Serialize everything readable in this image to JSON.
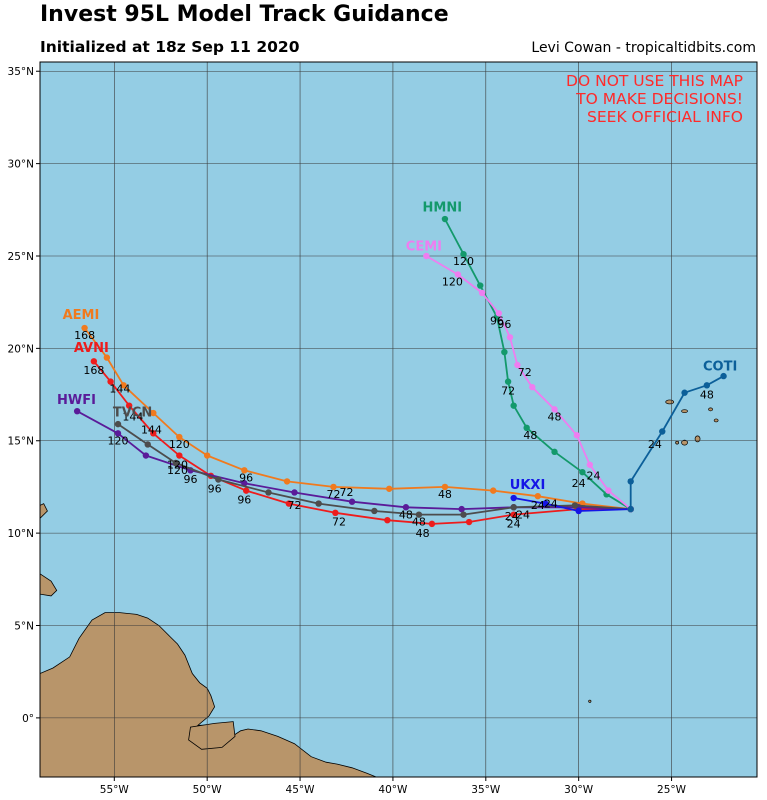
{
  "header": {
    "title": "Invest 95L Model Track Guidance",
    "subtitle": "Initialized at 18z Sep 11 2020",
    "credit": "Levi Cowan - tropicaltidbits.com"
  },
  "warning": [
    "DO NOT USE THIS MAP",
    "TO MAKE DECISIONS!",
    "SEEK OFFICIAL INFO"
  ],
  "map": {
    "lon_range": [
      -59,
      -20.4
    ],
    "lat_range": [
      -3.2,
      35.5
    ],
    "x_ticks": [
      {
        "lon": -55,
        "label": "55°W"
      },
      {
        "lon": -50,
        "label": "50°W"
      },
      {
        "lon": -45,
        "label": "45°W"
      },
      {
        "lon": -40,
        "label": "40°W"
      },
      {
        "lon": -35,
        "label": "35°W"
      },
      {
        "lon": -30,
        "label": "30°W"
      },
      {
        "lon": -25,
        "label": "25°W"
      }
    ],
    "y_ticks": [
      {
        "lat": 0,
        "label": "0°"
      },
      {
        "lat": 5,
        "label": "5°N"
      },
      {
        "lat": 10,
        "label": "10°N"
      },
      {
        "lat": 15,
        "label": "15°N"
      },
      {
        "lat": 20,
        "label": "20°N"
      },
      {
        "lat": 25,
        "label": "25°N"
      },
      {
        "lat": 30,
        "label": "30°N"
      },
      {
        "lat": 35,
        "label": "35°N"
      }
    ],
    "ocean_color": "#94cde4",
    "land_color": "#b8956a",
    "land": [
      [
        [
          -59,
          2.4
        ],
        [
          -58.3,
          2.7
        ],
        [
          -57.4,
          3.3
        ],
        [
          -56.9,
          4.3
        ],
        [
          -56.2,
          5.3
        ],
        [
          -55.5,
          5.7
        ],
        [
          -54.7,
          5.7
        ],
        [
          -53.8,
          5.6
        ],
        [
          -53.2,
          5.4
        ],
        [
          -52.6,
          5.0
        ],
        [
          -52.0,
          4.4
        ],
        [
          -51.6,
          4.0
        ],
        [
          -51.2,
          3.4
        ],
        [
          -50.8,
          2.4
        ],
        [
          -50.4,
          1.9
        ],
        [
          -50.0,
          1.6
        ],
        [
          -49.8,
          1.2
        ],
        [
          -49.6,
          0.6
        ],
        [
          -49.9,
          0.1
        ],
        [
          -50.5,
          -0.4
        ],
        [
          -49.2,
          -0.4
        ],
        [
          -48.5,
          -0.9
        ],
        [
          -48.2,
          -0.7
        ],
        [
          -47.8,
          -0.6
        ],
        [
          -47.1,
          -0.7
        ],
        [
          -46.2,
          -1.0
        ],
        [
          -45.3,
          -1.4
        ],
        [
          -44.4,
          -2.1
        ],
        [
          -43.6,
          -2.4
        ],
        [
          -43.0,
          -2.5
        ],
        [
          -42.2,
          -2.7
        ],
        [
          -41.4,
          -3.0
        ],
        [
          -40.9,
          -3.2
        ],
        [
          -59,
          -3.2
        ]
      ],
      [
        [
          -59,
          7.8
        ],
        [
          -58.4,
          7.4
        ],
        [
          -58.1,
          6.9
        ],
        [
          -58.4,
          6.6
        ],
        [
          -59,
          6.7
        ]
      ],
      [
        [
          -48.6,
          -0.2
        ],
        [
          -49.6,
          -0.3
        ],
        [
          -50.9,
          -0.5
        ],
        [
          -51.0,
          -1.2
        ],
        [
          -50.3,
          -1.7
        ],
        [
          -49.2,
          -1.6
        ],
        [
          -48.5,
          -1.0
        ]
      ],
      [
        [
          -59,
          10.8
        ],
        [
          -58.6,
          11.2
        ],
        [
          -58.8,
          11.6
        ],
        [
          -59,
          11.5
        ]
      ]
    ],
    "islands": [
      {
        "lon": -25.1,
        "lat": 17.1,
        "rx": 4,
        "ry": 2
      },
      {
        "lon": -24.3,
        "lat": 16.6,
        "rx": 3,
        "ry": 1.5
      },
      {
        "lon": -22.9,
        "lat": 16.7,
        "rx": 2,
        "ry": 1.5
      },
      {
        "lon": -22.6,
        "lat": 16.1,
        "rx": 2,
        "ry": 1.5
      },
      {
        "lon": -23.6,
        "lat": 15.1,
        "rx": 2.5,
        "ry": 3
      },
      {
        "lon": -24.3,
        "lat": 14.9,
        "rx": 3,
        "ry": 2.5
      },
      {
        "lon": -24.7,
        "lat": 14.9,
        "rx": 1.5,
        "ry": 1.5
      },
      {
        "lon": -29.4,
        "lat": 0.9,
        "rx": 1.2,
        "ry": 1.2
      }
    ]
  },
  "chart_data": {
    "type": "map-tracks",
    "origin": [
      -27.2,
      11.3
    ],
    "models": [
      {
        "name": "AEMI",
        "color": "#f07a1e",
        "name_at": [
          -56.6,
          21.6
        ],
        "label_dx": -22,
        "points": [
          [
            -27.2,
            11.3
          ],
          [
            -29.8,
            11.6
          ],
          [
            -32.2,
            12.0
          ],
          [
            -34.6,
            12.3
          ],
          [
            -37.2,
            12.5
          ],
          [
            -40.2,
            12.4
          ],
          [
            -43.2,
            12.5
          ],
          [
            -45.7,
            12.8
          ],
          [
            -48.0,
            13.4
          ],
          [
            -50.0,
            14.2
          ],
          [
            -51.5,
            15.2
          ],
          [
            -52.9,
            16.5
          ],
          [
            -54.5,
            18.0
          ],
          [
            -55.4,
            19.5
          ],
          [
            -56.6,
            21.1
          ]
        ],
        "hour_labels": [
          {
            "text": "168",
            "lon": -56.6,
            "lat": 20.5
          },
          {
            "text": "144",
            "lon": -54.7,
            "lat": 17.6
          },
          {
            "text": "120",
            "lon": -51.5,
            "lat": 14.6
          },
          {
            "text": "96",
            "lon": -47.9,
            "lat": 12.8
          },
          {
            "text": "72",
            "lon": -43.2,
            "lat": 11.9
          },
          {
            "text": "48",
            "lon": -37.2,
            "lat": 11.9
          },
          {
            "text": "24",
            "lon": -31.5,
            "lat": 11.4
          }
        ]
      },
      {
        "name": "AVNI",
        "color": "#ee1c1c",
        "name_at": [
          -56.1,
          19.8
        ],
        "label_dx": -20,
        "points": [
          [
            -27.2,
            11.3
          ],
          [
            -30.0,
            11.3
          ],
          [
            -33.5,
            11.0
          ],
          [
            -35.9,
            10.6
          ],
          [
            -37.9,
            10.5
          ],
          [
            -40.3,
            10.7
          ],
          [
            -43.1,
            11.1
          ],
          [
            -45.6,
            11.6
          ],
          [
            -47.9,
            12.3
          ],
          [
            -49.8,
            13.1
          ],
          [
            -51.5,
            14.2
          ],
          [
            -52.9,
            15.4
          ],
          [
            -54.2,
            16.9
          ],
          [
            -55.2,
            18.2
          ],
          [
            -56.1,
            19.3
          ]
        ],
        "hour_labels": [
          {
            "text": "168",
            "lon": -56.1,
            "lat": 18.6
          },
          {
            "text": "144",
            "lon": -54.0,
            "lat": 16.1
          },
          {
            "text": "120",
            "lon": -51.6,
            "lat": 13.5
          },
          {
            "text": "96",
            "lon": -48.0,
            "lat": 11.6
          },
          {
            "text": "72",
            "lon": -42.9,
            "lat": 10.4
          },
          {
            "text": "48",
            "lon": -38.4,
            "lat": 9.8
          },
          {
            "text": "24",
            "lon": -33.5,
            "lat": 10.3
          }
        ]
      },
      {
        "name": "HWFI",
        "color": "#5a1b99",
        "name_at": [
          -56.9,
          17.0
        ],
        "label_dx": -22,
        "points": [
          [
            -27.2,
            11.3
          ],
          [
            -30.0,
            11.4
          ],
          [
            -33.5,
            11.4
          ],
          [
            -36.3,
            11.3
          ],
          [
            -39.3,
            11.4
          ],
          [
            -42.2,
            11.7
          ],
          [
            -45.3,
            12.2
          ],
          [
            -48.0,
            12.7
          ],
          [
            -50.9,
            13.4
          ],
          [
            -53.3,
            14.2
          ],
          [
            -54.8,
            15.4
          ],
          [
            -57.0,
            16.6
          ]
        ],
        "hour_labels": [
          {
            "text": "120",
            "lon": -54.8,
            "lat": 14.8
          },
          {
            "text": "96",
            "lon": -50.9,
            "lat": 12.7
          },
          {
            "text": "72",
            "lon": -42.5,
            "lat": 12.0
          },
          {
            "text": "48",
            "lon": -39.3,
            "lat": 10.8
          },
          {
            "text": "24",
            "lon": -33.0,
            "lat": 10.8
          }
        ]
      },
      {
        "name": "TVCN",
        "color": "#4d4d4d",
        "name_at": [
          -54.0,
          16.3
        ],
        "label_dx": -20,
        "points": [
          [
            -27.2,
            11.3
          ],
          [
            -30.2,
            11.5
          ],
          [
            -33.5,
            11.4
          ],
          [
            -36.2,
            11.0
          ],
          [
            -38.6,
            11.0
          ],
          [
            -41.0,
            11.2
          ],
          [
            -44.0,
            11.6
          ],
          [
            -46.7,
            12.2
          ],
          [
            -49.4,
            12.9
          ],
          [
            -51.7,
            13.8
          ],
          [
            -53.2,
            14.8
          ],
          [
            -54.8,
            15.9
          ]
        ],
        "hour_labels": [
          {
            "text": "144",
            "lon": -53.0,
            "lat": 15.4
          },
          {
            "text": "120",
            "lon": -51.6,
            "lat": 13.2
          },
          {
            "text": "96",
            "lon": -49.6,
            "lat": 12.2
          },
          {
            "text": "72",
            "lon": -45.3,
            "lat": 11.3
          },
          {
            "text": "48",
            "lon": -38.6,
            "lat": 10.4
          },
          {
            "text": "24",
            "lon": -33.6,
            "lat": 10.7
          }
        ]
      },
      {
        "name": "UKXI",
        "color": "#1515e6",
        "name_at": [
          -33.6,
          12.4
        ],
        "label_dx": -2,
        "points": [
          [
            -27.2,
            11.3
          ],
          [
            -30.0,
            11.2
          ],
          [
            -31.8,
            11.6
          ],
          [
            -33.5,
            11.9
          ]
        ],
        "hour_labels": [
          {
            "text": "24",
            "lon": -32.2,
            "lat": 11.3
          }
        ]
      },
      {
        "name": "HMNI",
        "color": "#13996b",
        "name_at": [
          -38.3,
          27.4
        ],
        "label_dx": -2,
        "points": [
          [
            -27.2,
            11.3
          ],
          [
            -28.5,
            12.1
          ],
          [
            -29.8,
            13.3
          ],
          [
            -31.3,
            14.4
          ],
          [
            -32.8,
            15.7
          ],
          [
            -33.5,
            16.9
          ],
          [
            -33.8,
            18.2
          ],
          [
            -34.0,
            19.8
          ],
          [
            -34.4,
            21.7
          ],
          [
            -35.3,
            23.4
          ],
          [
            -36.2,
            25.1
          ],
          [
            -37.2,
            27.0
          ]
        ],
        "hour_labels": [
          {
            "text": "24",
            "lon": -29.2,
            "lat": 12.9
          },
          {
            "text": "48",
            "lon": -32.6,
            "lat": 15.1
          },
          {
            "text": "72",
            "lon": -33.8,
            "lat": 17.5
          },
          {
            "text": "96",
            "lon": -34.0,
            "lat": 21.1
          },
          {
            "text": "120",
            "lon": -36.2,
            "lat": 24.5
          }
        ]
      },
      {
        "name": "CEMI",
        "color": "#ee7df0",
        "name_at": [
          -39.2,
          25.3
        ],
        "label_dx": -2,
        "points": [
          [
            -27.2,
            11.3
          ],
          [
            -28.4,
            12.3
          ],
          [
            -29.4,
            13.7
          ],
          [
            -30.1,
            15.3
          ],
          [
            -31.3,
            16.7
          ],
          [
            -32.5,
            17.9
          ],
          [
            -33.3,
            19.1
          ],
          [
            -33.7,
            20.6
          ],
          [
            -34.3,
            21.9
          ],
          [
            -35.2,
            23.0
          ],
          [
            -36.5,
            24.0
          ],
          [
            -38.2,
            25.0
          ]
        ],
        "hour_labels": [
          {
            "text": "24",
            "lon": -30.0,
            "lat": 12.5
          },
          {
            "text": "48",
            "lon": -31.3,
            "lat": 16.1
          },
          {
            "text": "72",
            "lon": -32.9,
            "lat": 18.5
          },
          {
            "text": "96",
            "lon": -34.4,
            "lat": 21.3
          },
          {
            "text": "120",
            "lon": -36.8,
            "lat": 23.4
          }
        ]
      },
      {
        "name": "COTI",
        "color": "#0c5f99",
        "name_at": [
          -23.2,
          18.8
        ],
        "label_dx": -2,
        "points": [
          [
            -27.2,
            11.3
          ],
          [
            -27.2,
            12.8
          ],
          [
            -25.5,
            15.5
          ],
          [
            -24.3,
            17.6
          ],
          [
            -23.1,
            18.0
          ],
          [
            -22.2,
            18.5
          ]
        ],
        "hour_labels": [
          {
            "text": "24",
            "lon": -25.9,
            "lat": 14.6
          },
          {
            "text": "48",
            "lon": -23.1,
            "lat": 17.3
          }
        ]
      }
    ]
  }
}
